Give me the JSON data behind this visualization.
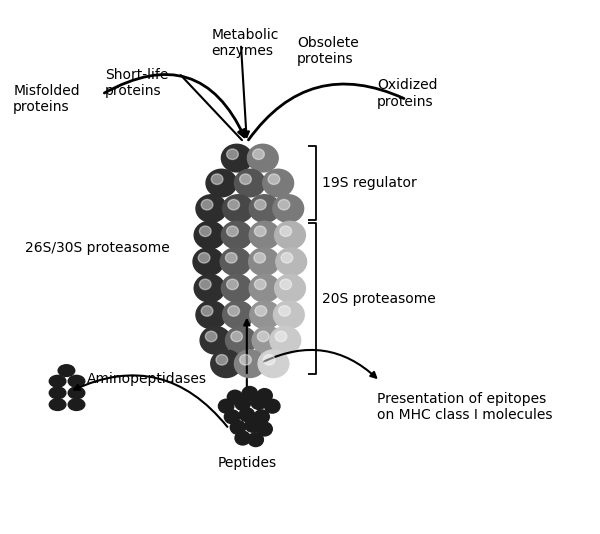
{
  "background_color": "#ffffff",
  "figsize": [
    6.0,
    5.34
  ],
  "dpi": 100,
  "labels": {
    "misfolded": "Misfolded\nproteins",
    "shortlife": "Short-life\nproteins",
    "metabolic": "Metabolic\nenzymes",
    "obsolete": "Obsolete\nproteins",
    "oxidized": "Oxidized\nproteins",
    "proteasome_26s": "26S/30S proteasome",
    "19s": "19S regulator",
    "20s": "20S proteasome",
    "aminopeptidases": "Aminopeptidases",
    "peptides": "Peptides",
    "presentation": "Presentation of epitopes\non MHC class I molecules"
  },
  "text_fontsize": 10,
  "arrow_lw": 1.5
}
